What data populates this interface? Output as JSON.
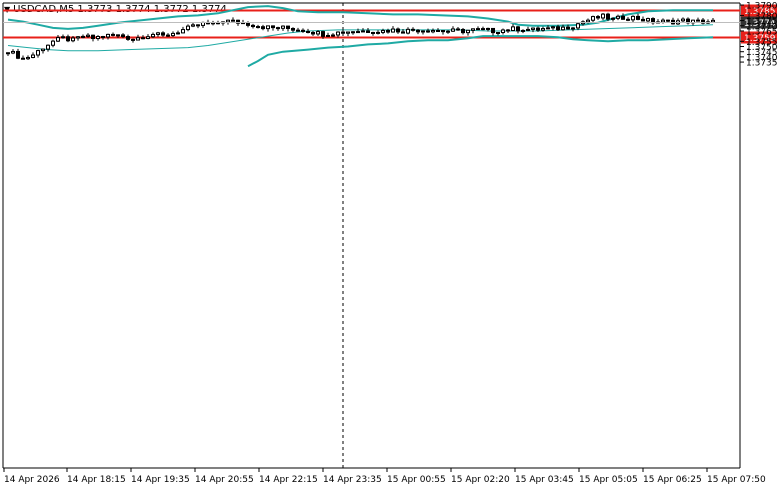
{
  "header": {
    "symbol_label": "USDCAD,M5",
    "ohlc": "1.3773 1.3774 1.3772 1.3774"
  },
  "colors": {
    "background": "#ffffff",
    "axis": "#000000",
    "grid": "#c8c8c8",
    "bands": "#1faaa4",
    "level": "#e8201a",
    "current": "#333333",
    "candle": "#000000"
  },
  "chart_data": {
    "type": "candlestick",
    "title": "",
    "ylim": [
      1.3731,
      1.3791
    ],
    "grid": "off",
    "yticks": [
      "1.3790",
      "1.3780",
      "1.3775",
      "1.3770",
      "1.3765",
      "1.3755",
      "1.3750",
      "1.3745",
      "1.3740",
      "1.3735"
    ],
    "xticks": [
      "14 Apr 2026",
      "14 Apr 18:15",
      "14 Apr 19:35",
      "14 Apr 20:55",
      "14 Apr 22:15",
      "14 Apr 23:35",
      "15 Apr 00:55",
      "15 Apr 02:20",
      "15 Apr 03:45",
      "15 Apr 05:05",
      "15 Apr 06:25",
      "15 Apr 07:50"
    ],
    "levels": [
      {
        "label": "1.3785",
        "value": 1.37855
      },
      {
        "label": "1.3759",
        "value": 1.37595
      }
    ],
    "current_price": {
      "label": "1.3774",
      "value": 1.37739
    },
    "close_path": [
      [
        0,
        1.3746
      ],
      [
        3,
        1.3738
      ],
      [
        5,
        1.3742
      ],
      [
        7,
        1.3749
      ],
      [
        9,
        1.3755
      ],
      [
        11,
        1.3758
      ],
      [
        13,
        1.3756
      ],
      [
        15,
        1.376
      ],
      [
        17,
        1.3758
      ],
      [
        19,
        1.376
      ],
      [
        21,
        1.3761
      ],
      [
        23,
        1.376
      ],
      [
        25,
        1.3757
      ],
      [
        27,
        1.376
      ],
      [
        29,
        1.3762
      ],
      [
        31,
        1.376
      ],
      [
        33,
        1.3763
      ],
      [
        35,
        1.3766
      ],
      [
        37,
        1.3769
      ],
      [
        39,
        1.3772
      ],
      [
        41,
        1.3771
      ],
      [
        43,
        1.3775
      ],
      [
        45,
        1.3774
      ],
      [
        47,
        1.3773
      ],
      [
        49,
        1.3771
      ],
      [
        51,
        1.3769
      ],
      [
        53,
        1.3768
      ],
      [
        55,
        1.3768
      ],
      [
        57,
        1.3767
      ],
      [
        59,
        1.3766
      ],
      [
        61,
        1.3764
      ],
      [
        63,
        1.3762
      ],
      [
        65,
        1.3763
      ],
      [
        67,
        1.3764
      ],
      [
        69,
        1.3765
      ],
      [
        71,
        1.3765
      ],
      [
        73,
        1.3765
      ],
      [
        75,
        1.3765
      ],
      [
        77,
        1.3766
      ],
      [
        79,
        1.3765
      ],
      [
        81,
        1.3766
      ],
      [
        83,
        1.3766
      ],
      [
        85,
        1.3766
      ],
      [
        87,
        1.3765
      ],
      [
        89,
        1.3765
      ],
      [
        91,
        1.3765
      ],
      [
        93,
        1.3766
      ],
      [
        95,
        1.3766
      ],
      [
        97,
        1.3765
      ],
      [
        99,
        1.3766
      ],
      [
        101,
        1.3767
      ],
      [
        103,
        1.3767
      ],
      [
        105,
        1.3766
      ],
      [
        107,
        1.3767
      ],
      [
        109,
        1.3767
      ],
      [
        111,
        1.3768
      ],
      [
        113,
        1.377
      ],
      [
        115,
        1.3774
      ],
      [
        117,
        1.3777
      ],
      [
        119,
        1.3779
      ],
      [
        121,
        1.3776
      ],
      [
        123,
        1.3778
      ],
      [
        125,
        1.3778
      ],
      [
        127,
        1.3776
      ],
      [
        129,
        1.3774
      ],
      [
        131,
        1.3774
      ],
      [
        133,
        1.3774
      ],
      [
        135,
        1.3775
      ],
      [
        137,
        1.3774
      ],
      [
        139,
        1.3774
      ],
      [
        141,
        1.3774
      ]
    ],
    "upper_band": [
      [
        0,
        1.3776
      ],
      [
        3,
        1.3774
      ],
      [
        6,
        1.3771
      ],
      [
        9,
        1.3768
      ],
      [
        12,
        1.3767
      ],
      [
        15,
        1.3768
      ],
      [
        18,
        1.377
      ],
      [
        22,
        1.3773
      ],
      [
        26,
        1.3775
      ],
      [
        30,
        1.3777
      ],
      [
        34,
        1.3779
      ],
      [
        38,
        1.378
      ],
      [
        42,
        1.3782
      ],
      [
        45,
        1.3785
      ],
      [
        48,
        1.3788
      ],
      [
        52,
        1.3789
      ],
      [
        55,
        1.3787
      ],
      [
        58,
        1.3784
      ],
      [
        62,
        1.3783
      ],
      [
        67,
        1.3783
      ],
      [
        72,
        1.3782
      ],
      [
        77,
        1.3781
      ],
      [
        82,
        1.3781
      ],
      [
        87,
        1.378
      ],
      [
        92,
        1.3779
      ],
      [
        96,
        1.3777
      ],
      [
        100,
        1.3774
      ],
      [
        102,
        1.3771
      ],
      [
        105,
        1.377
      ],
      [
        110,
        1.377
      ],
      [
        115,
        1.3771
      ],
      [
        118,
        1.3773
      ],
      [
        121,
        1.3777
      ],
      [
        124,
        1.3781
      ],
      [
        128,
        1.3784
      ],
      [
        133,
        1.3785
      ],
      [
        137,
        1.3785
      ],
      [
        141,
        1.3785
      ]
    ],
    "middle_band": [
      [
        0,
        1.3751
      ],
      [
        4,
        1.3749
      ],
      [
        8,
        1.3747
      ],
      [
        12,
        1.3746
      ],
      [
        18,
        1.3746
      ],
      [
        24,
        1.3747
      ],
      [
        30,
        1.3748
      ],
      [
        36,
        1.3749
      ],
      [
        40,
        1.3751
      ],
      [
        44,
        1.3754
      ],
      [
        48,
        1.3757
      ],
      [
        52,
        1.376
      ],
      [
        56,
        1.3763
      ],
      [
        60,
        1.3765
      ],
      [
        66,
        1.3766
      ],
      [
        72,
        1.3766
      ],
      [
        78,
        1.3766
      ],
      [
        84,
        1.3766
      ],
      [
        90,
        1.3766
      ],
      [
        96,
        1.3765
      ],
      [
        100,
        1.3765
      ],
      [
        106,
        1.3765
      ],
      [
        112,
        1.3766
      ],
      [
        118,
        1.3767
      ],
      [
        124,
        1.3768
      ],
      [
        130,
        1.3769
      ],
      [
        136,
        1.377
      ],
      [
        141,
        1.3771
      ]
    ],
    "lower_band": [
      [
        48,
        1.3731
      ],
      [
        50,
        1.3736
      ],
      [
        52,
        1.3742
      ],
      [
        55,
        1.3745
      ],
      [
        60,
        1.3747
      ],
      [
        64,
        1.3749
      ],
      [
        68,
        1.375
      ],
      [
        72,
        1.3752
      ],
      [
        76,
        1.3753
      ],
      [
        80,
        1.3755
      ],
      [
        84,
        1.3756
      ],
      [
        88,
        1.3756
      ],
      [
        92,
        1.3758
      ],
      [
        95,
        1.376
      ],
      [
        100,
        1.376
      ],
      [
        106,
        1.376
      ],
      [
        110,
        1.3759
      ],
      [
        113,
        1.3757
      ],
      [
        116,
        1.3756
      ],
      [
        120,
        1.3755
      ],
      [
        124,
        1.3756
      ],
      [
        128,
        1.3756
      ],
      [
        132,
        1.3757
      ],
      [
        136,
        1.3758
      ],
      [
        141,
        1.3759
      ]
    ]
  }
}
